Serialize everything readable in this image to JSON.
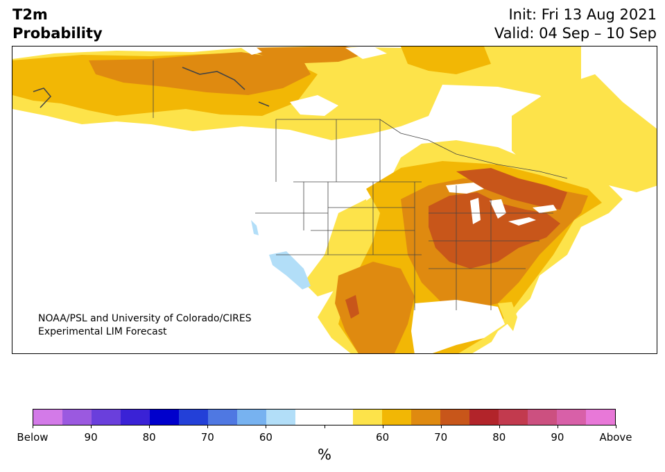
{
  "header": {
    "title_line1": "T2m",
    "title_line2": "Probability",
    "init_line": "Init: Fri 13 Aug 2021",
    "valid_line": "Valid: 04 Sep – 10 Sep"
  },
  "credit": {
    "line1": "NOAA/PSL and University of Colorado/CIRES",
    "line2": "Experimental LIM Forecast"
  },
  "colorbar": {
    "colors": [
      "#d37ae8",
      "#9b59e0",
      "#6a3fdc",
      "#3a22d6",
      "#0000cc",
      "#2340d8",
      "#4f78e2",
      "#77b2f0",
      "#b2def8",
      "#ffffff",
      "#ffffff",
      "#fde34a",
      "#f2b705",
      "#df8a10",
      "#c8561a",
      "#b2242a",
      "#c23a4e",
      "#cc5080",
      "#d860a8",
      "#e878d8"
    ],
    "labels": [
      "Below",
      "90",
      "80",
      "70",
      "60",
      "60",
      "70",
      "80",
      "90",
      "Above"
    ],
    "unit": "%"
  },
  "legend_categories": {
    "below_levels": [
      "90",
      "80",
      "70",
      "60"
    ],
    "above_levels": [
      "60",
      "70",
      "80",
      "90"
    ]
  }
}
